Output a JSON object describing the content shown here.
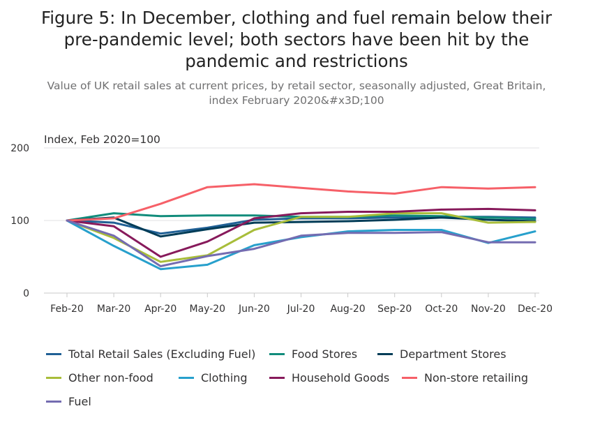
{
  "chart_data": {
    "type": "line",
    "title": "Figure 5: In December, clothing and fuel remain below their\npre-pandemic level; both sectors have been hit by the\npandemic and restrictions",
    "subtitle": "Value of UK retail sales at current prices, by retail sector, seasonally adjusted, Great Britain,\nindex February 2020&#x3D;100",
    "ylabel": "Index, Feb 2020=100",
    "xlabel": "",
    "categories": [
      "Feb-20",
      "Mar-20",
      "Apr-20",
      "May-20",
      "Jun-20",
      "Jul-20",
      "Aug-20",
      "Sep-20",
      "Oct-20",
      "Nov-20",
      "Dec-20"
    ],
    "ylim": [
      0,
      200
    ],
    "yticks": [
      0,
      100,
      200
    ],
    "grid": true,
    "legend_position": "bottom",
    "series": [
      {
        "name": "Total Retail Sales (Excluding Fuel)",
        "color": "#206095",
        "values": [
          100,
          97,
          82,
          90,
          101,
          103,
          103,
          104,
          105,
          105,
          104
        ]
      },
      {
        "name": "Food Stores",
        "color": "#118c7b",
        "values": [
          100,
          110,
          106,
          107,
          107,
          105,
          105,
          107,
          106,
          104,
          102
        ]
      },
      {
        "name": "Department Stores",
        "color": "#003c57",
        "values": [
          100,
          104,
          78,
          88,
          97,
          98,
          99,
          101,
          104,
          101,
          99
        ]
      },
      {
        "name": "Other non-food",
        "color": "#a8bd3a",
        "values": [
          100,
          76,
          43,
          52,
          87,
          105,
          105,
          110,
          110,
          97,
          98
        ]
      },
      {
        "name": "Clothing",
        "color": "#27a0cc",
        "values": [
          100,
          65,
          33,
          39,
          66,
          77,
          85,
          87,
          87,
          69,
          85
        ]
      },
      {
        "name": "Household Goods",
        "color": "#871a5b",
        "values": [
          100,
          92,
          50,
          71,
          103,
          110,
          112,
          112,
          115,
          116,
          114
        ]
      },
      {
        "name": "Non-store retailing",
        "color": "#f66068",
        "values": [
          100,
          103,
          123,
          146,
          150,
          145,
          140,
          137,
          146,
          144,
          146
        ]
      },
      {
        "name": "Fuel",
        "color": "#746cb1",
        "values": [
          100,
          79,
          37,
          51,
          61,
          79,
          83,
          83,
          84,
          70,
          70
        ]
      }
    ]
  }
}
